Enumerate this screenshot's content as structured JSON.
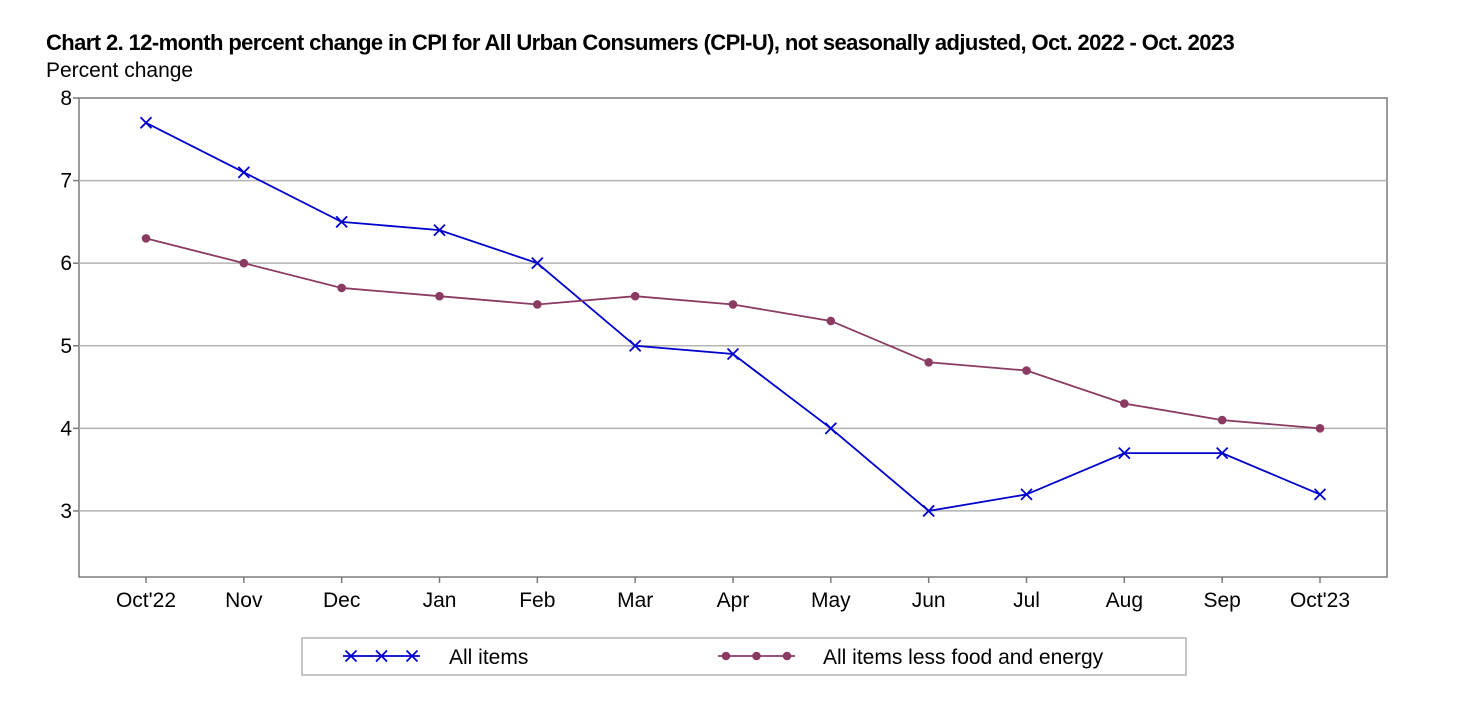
{
  "chart_data": {
    "type": "line",
    "title": "Chart 2. 12-month percent change in CPI for All Urban Consumers (CPI-U), not seasonally adjusted, Oct. 2022 - Oct. 2023",
    "ylabel": "Percent change",
    "xlabel": "",
    "categories": [
      "Oct'22",
      "Nov",
      "Dec",
      "Jan",
      "Feb",
      "Mar",
      "Apr",
      "May",
      "Jun",
      "Jul",
      "Aug",
      "Sep",
      "Oct'23"
    ],
    "ylim": [
      2.2,
      8
    ],
    "yticks": [
      3,
      4,
      5,
      6,
      7,
      8
    ],
    "grid": true,
    "legend_position": "bottom",
    "series": [
      {
        "name": "All items",
        "color": "#0000cc",
        "marker": "x-icon",
        "values": [
          7.7,
          7.1,
          6.5,
          6.4,
          6.0,
          5.0,
          4.9,
          4.0,
          3.0,
          3.2,
          3.7,
          3.7,
          3.2
        ]
      },
      {
        "name": "All items less food and energy",
        "color": "#8b3a62",
        "marker": "circle-icon",
        "values": [
          6.3,
          6.0,
          5.7,
          5.6,
          5.5,
          5.6,
          5.5,
          5.3,
          4.8,
          4.7,
          4.3,
          4.1,
          4.0
        ]
      }
    ]
  }
}
